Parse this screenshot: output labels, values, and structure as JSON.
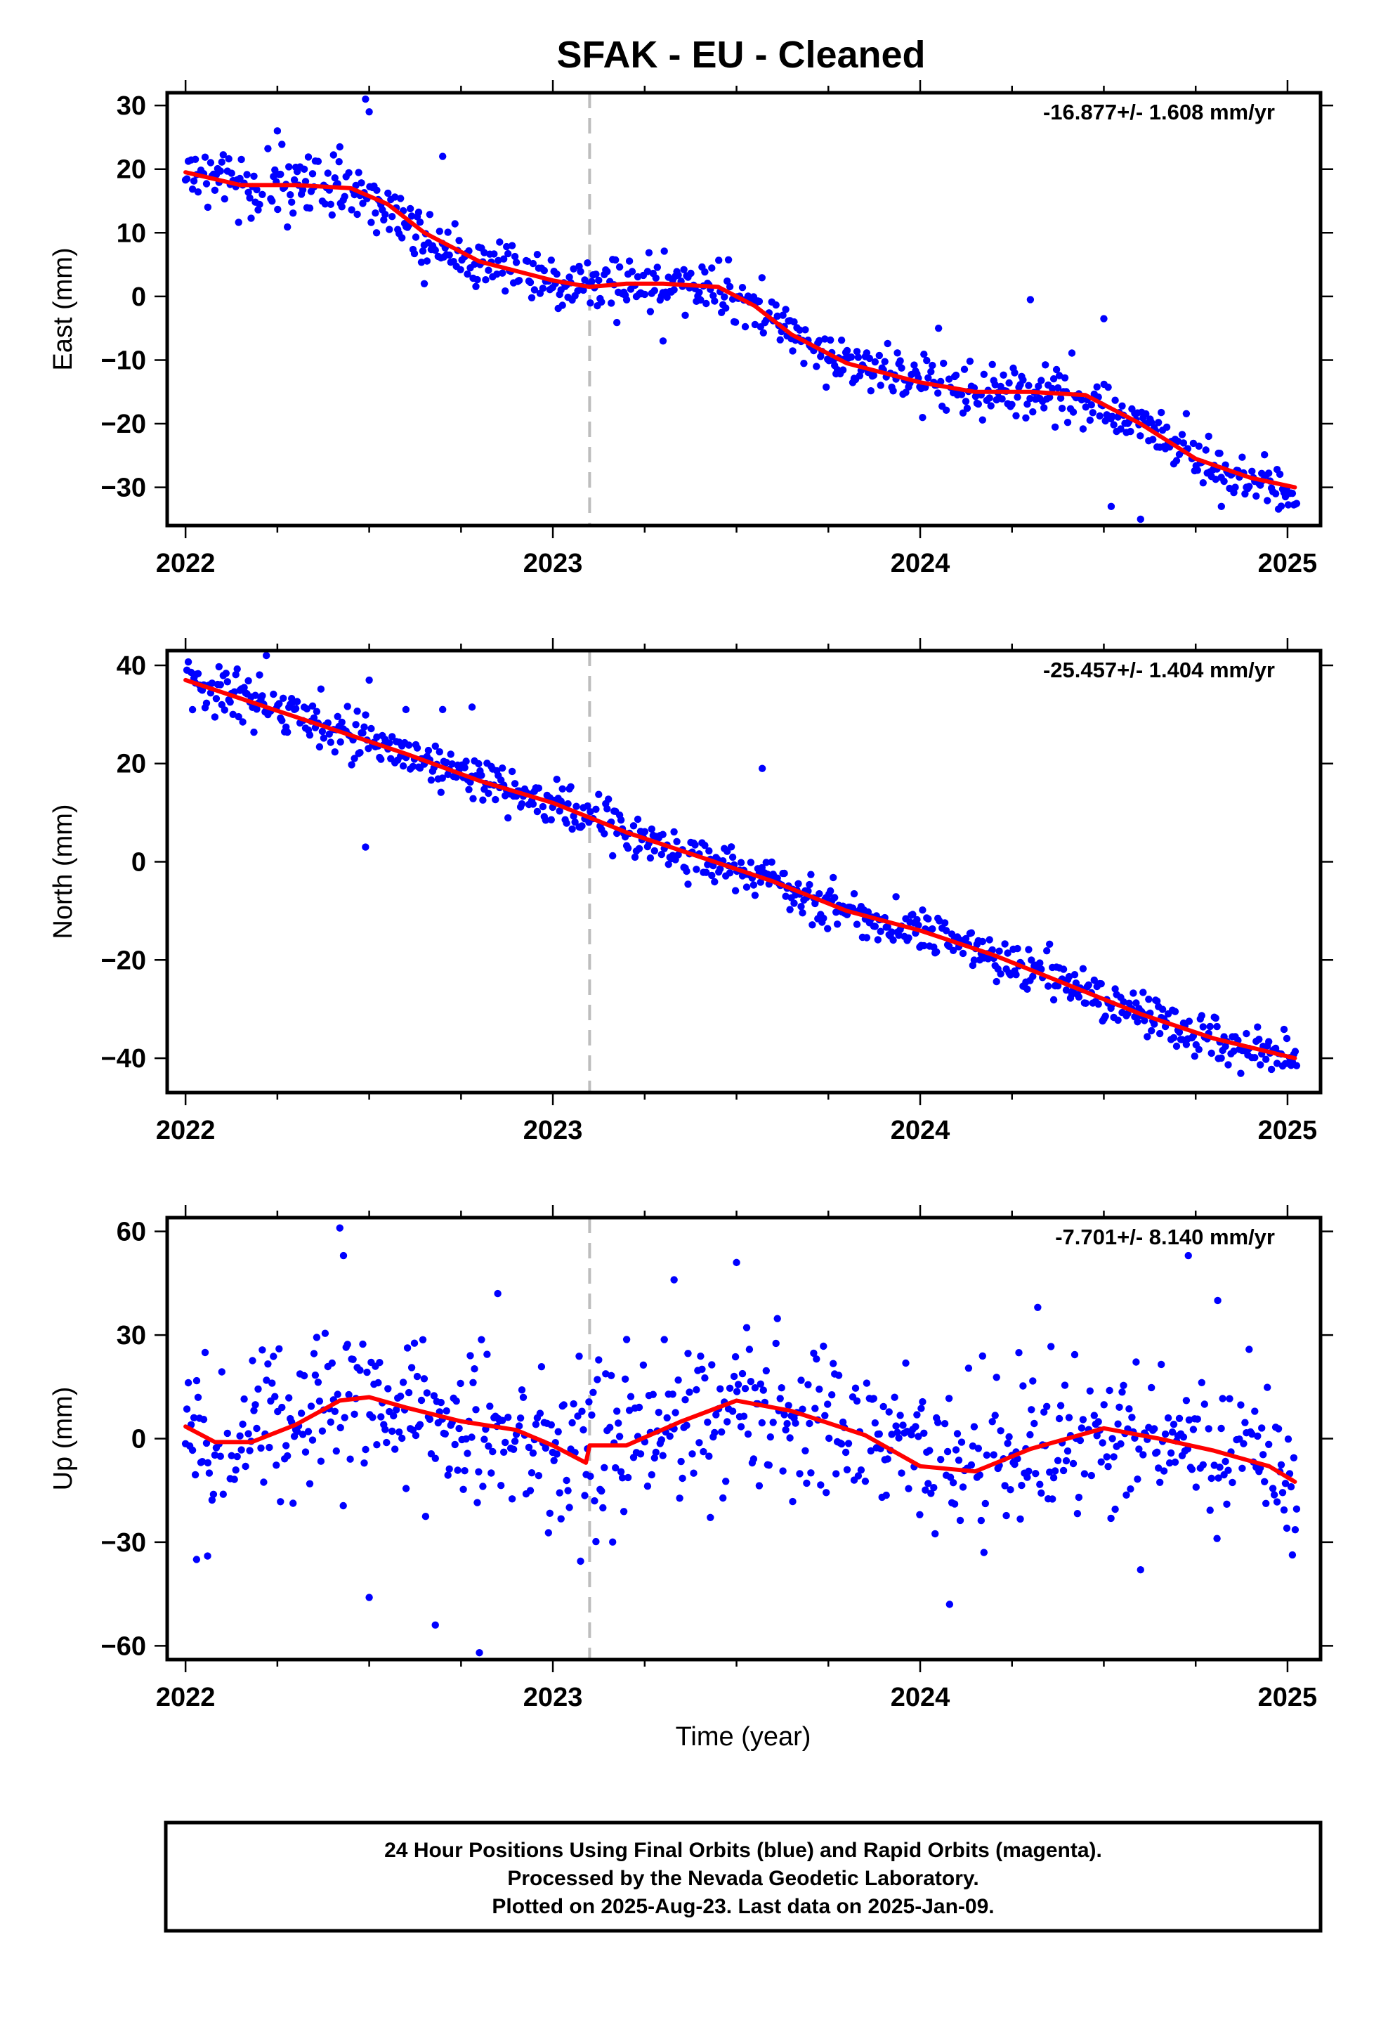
{
  "figure": {
    "title": "SFAK  - EU - Cleaned",
    "x_axis_label": "Time (year)",
    "footer_lines": [
      "24 Hour Positions Using Final Orbits (blue) and Rapid Orbits (magenta).",
      "Processed by the Nevada Geodetic Laboratory.",
      "Plotted on 2025-Aug-23. Last data on 2025-Jan-09."
    ],
    "colors": {
      "final_orbits": "#0000ff",
      "fit_line": "#ff0000",
      "equipment_change": "#bdbdbd"
    }
  },
  "chart_data": [
    {
      "type": "scatter",
      "panel": "east",
      "ylabel": "East (mm)",
      "rate_label": "-16.877+/- 1.608 mm/yr",
      "xlim": [
        2021.95,
        2025.09
      ],
      "ylim": [
        -36,
        32
      ],
      "xticks": [
        2022,
        2023,
        2024,
        2025
      ],
      "yticks": [
        -30,
        -20,
        -10,
        0,
        10,
        20,
        30
      ],
      "equipment_change_year": 2023.1,
      "fit": {
        "x": [
          2022.0,
          2022.15,
          2022.3,
          2022.45,
          2022.55,
          2022.65,
          2022.8,
          2023.0,
          2023.1,
          2023.2,
          2023.3,
          2023.45,
          2023.55,
          2023.65,
          2023.8,
          2024.0,
          2024.15,
          2024.3,
          2024.45,
          2024.6,
          2024.75,
          2024.9,
          2025.02
        ],
        "y": [
          19.5,
          17.5,
          17.5,
          17,
          14.5,
          10,
          5.5,
          2.5,
          1.5,
          2,
          2,
          1.5,
          -1.5,
          -6,
          -10.5,
          -13.5,
          -15,
          -15,
          -15.5,
          -20,
          -25.5,
          -28.5,
          -30
        ]
      },
      "outliers": {
        "x": [
          2022.49,
          2022.5,
          2022.42,
          2022.25,
          2023.3,
          2024.3,
          2024.5,
          2024.05,
          2024.6,
          2024.52,
          2024.82,
          2022.65,
          2022.7,
          2022.52
        ],
        "y": [
          31,
          29,
          23.5,
          26,
          -7,
          -0.5,
          -3.5,
          -5,
          -35,
          -33,
          -33,
          2,
          22,
          10
        ]
      }
    },
    {
      "type": "scatter",
      "panel": "north",
      "ylabel": "North (mm)",
      "rate_label": "-25.457+/- 1.404 mm/yr",
      "xlim": [
        2021.95,
        2025.09
      ],
      "ylim": [
        -47,
        43
      ],
      "xticks": [
        2022,
        2023,
        2024,
        2025
      ],
      "yticks": [
        -40,
        -20,
        0,
        20,
        40
      ],
      "equipment_change_year": 2023.1,
      "fit": {
        "x": [
          2022.0,
          2022.2,
          2022.4,
          2022.6,
          2022.8,
          2023.0,
          2023.2,
          2023.4,
          2023.6,
          2023.8,
          2024.0,
          2024.2,
          2024.4,
          2024.6,
          2024.8,
          2025.02
        ],
        "y": [
          37,
          32,
          27,
          22,
          16.5,
          12,
          6,
          1,
          -4,
          -10,
          -14,
          -19,
          -25,
          -31,
          -36,
          -40
        ]
      },
      "outliers": {
        "x": [
          2022.49,
          2022.5,
          2023.57,
          2022.22,
          2022.6,
          2022.7,
          2022.78
        ],
        "y": [
          3,
          37,
          19,
          42,
          31,
          31,
          31.5
        ]
      }
    },
    {
      "type": "scatter",
      "panel": "up",
      "ylabel": "Up (mm)",
      "rate_label": "-7.701+/- 8.140 mm/yr",
      "xlim": [
        2021.95,
        2025.09
      ],
      "ylim": [
        -64,
        64
      ],
      "xticks": [
        2022,
        2023,
        2024,
        2025
      ],
      "yticks": [
        -60,
        -30,
        0,
        30,
        60
      ],
      "equipment_change_year": 2023.1,
      "fit": {
        "x": [
          2022.0,
          2022.08,
          2022.18,
          2022.3,
          2022.42,
          2022.5,
          2022.6,
          2022.75,
          2022.9,
          2023.0,
          2023.09,
          2023.1,
          2023.2,
          2023.35,
          2023.5,
          2023.65,
          2023.85,
          2024.0,
          2024.15,
          2024.3,
          2024.5,
          2024.65,
          2024.8,
          2024.95,
          2025.02
        ],
        "y": [
          3.5,
          -1,
          -1,
          4,
          11,
          12,
          9,
          5,
          2.5,
          -2,
          -7,
          -2,
          -2,
          5,
          11,
          8,
          1,
          -8,
          -9.5,
          -3,
          3,
          0,
          -3.5,
          -8,
          -12.5
        ]
      },
      "outliers": {
        "x": [
          2022.42,
          2022.43,
          2022.5,
          2022.68,
          2022.8,
          2022.03,
          2022.06,
          2022.85,
          2023.5,
          2023.33,
          2024.73,
          2024.08,
          2024.32,
          2024.81,
          2024.6
        ],
        "y": [
          61,
          53,
          -46,
          -54,
          -62,
          -35,
          -34,
          42,
          51,
          46,
          53,
          -48,
          38,
          40,
          -38
        ]
      }
    }
  ]
}
